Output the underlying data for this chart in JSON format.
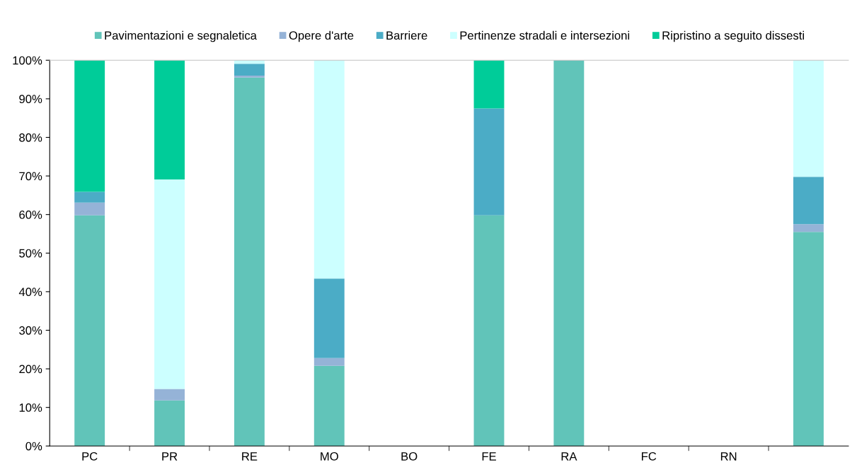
{
  "chart_data": {
    "type": "bar",
    "stacked": true,
    "categories": [
      "PC",
      "PR",
      "RE",
      "MO",
      "BO",
      "FE",
      "RA",
      "FC",
      "RN",
      null
    ],
    "series": [
      {
        "name": "Pavimentazioni e segnaletica",
        "color": "#61c4b9",
        "values": [
          59.8,
          11.8,
          95.5,
          20.8,
          0,
          59.8,
          100,
          0,
          0,
          55.5
        ]
      },
      {
        "name": "Opere d'arte",
        "color": "#95b3d7",
        "values": [
          3.3,
          3.0,
          0.5,
          2.0,
          0,
          0,
          0,
          0,
          0,
          2.0
        ]
      },
      {
        "name": "Barriere",
        "color": "#4bacc6",
        "values": [
          2.8,
          0,
          3.1,
          20.6,
          0,
          27.7,
          0,
          0,
          0,
          12.3
        ]
      },
      {
        "name": "Pertinenze stradali e intersezioni",
        "color": "#ccffff",
        "values": [
          0,
          54.3,
          0.9,
          56.6,
          0,
          0,
          0,
          0,
          0,
          30.2
        ]
      },
      {
        "name": "Ripristino a seguito dissesti",
        "color": "#00cc99",
        "values": [
          34.1,
          30.9,
          0,
          0,
          0,
          12.5,
          0,
          0,
          0,
          0
        ]
      }
    ],
    "ylim": [
      0,
      100
    ],
    "yticks": [
      {
        "value": 0,
        "label": "0%"
      },
      {
        "value": 10,
        "label": "10%"
      },
      {
        "value": 20,
        "label": "20%"
      },
      {
        "value": 30,
        "label": "30%"
      },
      {
        "value": 40,
        "label": "40%"
      },
      {
        "value": 50,
        "label": "50%"
      },
      {
        "value": 60,
        "label": "60%"
      },
      {
        "value": 70,
        "label": "70%"
      },
      {
        "value": 80,
        "label": "80%"
      },
      {
        "value": 90,
        "label": "90%"
      },
      {
        "value": 100,
        "label": "100%"
      }
    ],
    "legend": "top",
    "grid": false
  }
}
